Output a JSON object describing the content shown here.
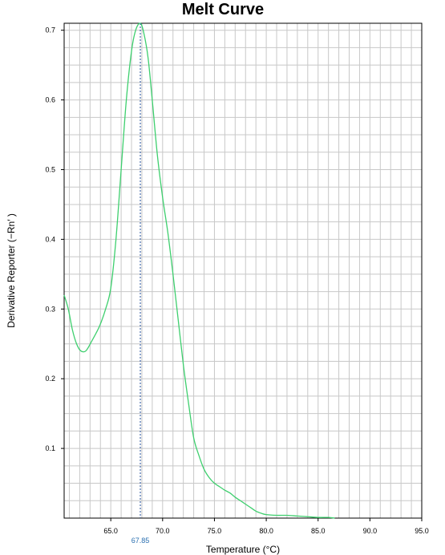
{
  "chart_data": {
    "type": "line",
    "title": "Melt Curve",
    "xlabel": "Temperature (°C)",
    "ylabel": "Derivative Reporter (−Rn′ )",
    "xlim": [
      60.5,
      95.0
    ],
    "ylim": [
      0.0,
      0.71
    ],
    "x_ticks": [
      {
        "value": 65.0,
        "label": "65.0"
      },
      {
        "value": 70.0,
        "label": "70.0"
      },
      {
        "value": 75.0,
        "label": "75.0"
      },
      {
        "value": 80.0,
        "label": "80.0"
      },
      {
        "value": 85.0,
        "label": "85.0"
      },
      {
        "value": 90.0,
        "label": "90.0"
      },
      {
        "value": 95.0,
        "label": "95.0"
      }
    ],
    "y_ticks": [
      {
        "value": 0.1,
        "label": "0.1"
      },
      {
        "value": 0.2,
        "label": "0.2"
      },
      {
        "value": 0.3,
        "label": "0.3"
      },
      {
        "value": 0.4,
        "label": "0.4"
      },
      {
        "value": 0.5,
        "label": "0.5"
      },
      {
        "value": 0.6,
        "label": "0.6"
      },
      {
        "value": 0.7,
        "label": "0.7"
      }
    ],
    "grid": true,
    "marker": {
      "x": 67.85,
      "label": "67.85",
      "color": "#1f4e9c",
      "label_color": "#2a6fb0"
    },
    "series": [
      {
        "color": "#3ecf6e",
        "x": [
          60.5,
          60.9,
          61.3,
          61.7,
          62.1,
          62.6,
          63.2,
          63.9,
          64.5,
          65.0,
          65.5,
          66.0,
          66.5,
          67.0,
          67.4,
          67.85,
          68.2,
          68.6,
          69.0,
          69.5,
          70.0,
          70.5,
          71.0,
          71.5,
          72.0,
          72.5,
          73.0,
          73.5,
          74.0,
          74.5,
          75.0,
          75.5,
          76.0,
          76.5,
          77.0,
          77.5,
          78.0,
          78.5,
          79.0,
          79.5,
          80.0,
          81.0,
          82.0,
          83.0,
          84.0,
          85.0,
          86.0,
          86.6
        ],
        "y": [
          0.32,
          0.3,
          0.27,
          0.25,
          0.24,
          0.24,
          0.255,
          0.275,
          0.3,
          0.33,
          0.4,
          0.5,
          0.6,
          0.67,
          0.7,
          0.71,
          0.695,
          0.66,
          0.6,
          0.52,
          0.46,
          0.41,
          0.35,
          0.285,
          0.22,
          0.165,
          0.115,
          0.09,
          0.07,
          0.058,
          0.05,
          0.045,
          0.04,
          0.036,
          0.03,
          0.025,
          0.02,
          0.015,
          0.01,
          0.007,
          0.005,
          0.004,
          0.004,
          0.003,
          0.002,
          0.001,
          0.001,
          0.0
        ]
      }
    ]
  }
}
